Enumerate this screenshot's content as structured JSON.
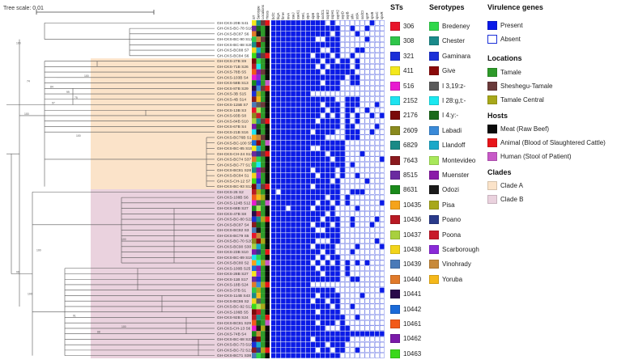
{
  "tree_scale": {
    "label": "Tree scale: 0.01"
  },
  "genes": [
    "ST",
    "Serotype",
    "Locations",
    "Hosts",
    "Clades",
    "bcfC",
    "bigA",
    "fimH",
    "invA",
    "sseJ",
    "sseK1",
    "sseL",
    "sipA",
    "sipB",
    "sipD",
    "sodC1",
    "sopE2",
    "sspH1",
    "sspH2",
    "sopD",
    "sopB",
    "sifA",
    "stdA",
    "sodCI",
    "sptP",
    "spvB",
    "spvC",
    "spvR"
  ],
  "gene_headers": [
    "ST",
    "Serotype",
    "Locations",
    "Hosts",
    "Clades",
    "bcfC",
    "bigA",
    "fimH",
    "invA",
    "sseJ",
    "sseK1",
    "sseL",
    "sipA",
    "sipB",
    "sipD",
    "sodC1",
    "sopE2",
    "sspH1",
    "sspH2",
    "sopD",
    "sopB",
    "sifA",
    "stdA",
    "sodCI",
    "sptP",
    "spvB",
    "spvC",
    "spvR"
  ],
  "taxa": [
    "GH-CKS-20B S41",
    "GH-CKS-BC-78 S18",
    "GH-CKS-BC87 S6",
    "GH-CKS-BC-90 S11",
    "GH-CKS-BC-88 S20",
    "GH-CKS-BC88 S7",
    "GH-CKS-BC84 S6",
    "GH-CKS-27B S9",
    "GH-CKS-71B S26",
    "GH-CKS-78B S5",
    "GH-CKS-103B S4",
    "GH-CKS-58B S13",
    "GH-CKS-87B S29",
    "GH-CKS-3B S15",
    "GH-CKS-4B S14",
    "GH-CKS-115B S7",
    "GH-CKS-13B S3",
    "GH-CKS-93B S8",
    "GH-CKS-84B S10",
    "GH-CKS-67B S4",
    "GH-CKS-21B S16",
    "GH-CKS-BC76B S12",
    "GH-CKS-BC-100 S5",
    "GH-CKS-BC-85 S15",
    "GH-CKS-CH-24 S13",
    "GH-CKS-BC74 S37",
    "GH-CKS-BC-77 S17",
    "GH-CKS-BC81 S28",
    "GH-CKS-BC84 S1",
    "GH-CKS-CH-12 S7",
    "GH-CKS-BC-93 S12",
    "GH-CKS-26 S2",
    "GH-CKS-108B S6",
    "GH-CKS-124B S12",
    "GH-CKS-68B S27",
    "GH-CKS-47B S8",
    "GH-CKS-BC-80 S22",
    "GH-CKS-BC87 S4",
    "GH-CKS-BC82 S3",
    "GH-CKS-BC79 S5",
    "GH-CKS-BC-70 S20",
    "GH-CKS-BC90 S30",
    "GH-CKS-23B S10",
    "GH-CKS-BC-89 S19",
    "GH-CKS-BC80 S2",
    "GH-CKS-100B S25",
    "GH-CKS-28B S27",
    "GH-CKS-11B S17",
    "GH-CKS-18B S24",
    "GH-CKS-37B S1",
    "GH-CKS-114B S43",
    "GH-CKS-BC86 S2",
    "GH-CKS-BC-92 S11",
    "GH-CKS-106B S5",
    "GH-CKS-92B S24",
    "GH-CKS-BC81 S29",
    "GH-CKS-CH-13 S6",
    "GH-CKS-74B S4",
    "GH-CKS-BC-68 S23",
    "GH-CKS-BC-73 S16",
    "GH-CKS-BC-72 S21",
    "GH-CKS-BC71 S38"
  ],
  "legends": {
    "sts": {
      "title": "STs",
      "items": [
        {
          "label": "306",
          "color": "#e8152a"
        },
        {
          "label": "308",
          "color": "#2fc64a"
        },
        {
          "label": "321",
          "color": "#1a2fd8"
        },
        {
          "label": "411",
          "color": "#f4e81b"
        },
        {
          "label": "516",
          "color": "#e81bd0"
        },
        {
          "label": "2152",
          "color": "#1ee3f0"
        },
        {
          "label": "2176",
          "color": "#7a0a0a"
        },
        {
          "label": "2609",
          "color": "#8a8a1e"
        },
        {
          "label": "6829",
          "color": "#1a8a86"
        },
        {
          "label": "7643",
          "color": "#8a1a1e"
        },
        {
          "label": "8515",
          "color": "#6a2aa0"
        },
        {
          "label": "8631",
          "color": "#1a8a1a"
        },
        {
          "label": "10435",
          "color": "#f5a31b"
        },
        {
          "label": "10436",
          "color": "#b81a24"
        },
        {
          "label": "10437",
          "color": "#a8d03e"
        },
        {
          "label": "10438",
          "color": "#f2d41a"
        },
        {
          "label": "10439",
          "color": "#4a7ab8"
        },
        {
          "label": "10440",
          "color": "#e07a2a"
        },
        {
          "label": "10441",
          "color": "#2a0a4a"
        },
        {
          "label": "10442",
          "color": "#1a6ad8"
        },
        {
          "label": "10461",
          "color": "#f25a1a"
        },
        {
          "label": "10462",
          "color": "#7a1aa8"
        },
        {
          "label": "10463",
          "color": "#3ad81a"
        }
      ]
    },
    "serotypes": {
      "title": "Serotypes",
      "items": [
        {
          "label": "Bredeney",
          "color": "#2fd84a"
        },
        {
          "label": "Chester",
          "color": "#1a8a8a"
        },
        {
          "label": "Gaminara",
          "color": "#1a2fd8"
        },
        {
          "label": "Give",
          "color": "#8a0a0a"
        },
        {
          "label": "I 3,19:z-",
          "color": "#5a5a5a"
        },
        {
          "label": "I 28:g,t:-",
          "color": "#1ae8f0"
        },
        {
          "label": "I 4:y:-",
          "color": "#1a6a1a"
        },
        {
          "label": "Labadi",
          "color": "#3a8ad8"
        },
        {
          "label": "Llandoff",
          "color": "#1aa8c8"
        },
        {
          "label": "Montevideo",
          "color": "#a8e85a"
        },
        {
          "label": "Muenster",
          "color": "#8a1aa8"
        },
        {
          "label": "Odozi",
          "color": "#1a1a1a"
        },
        {
          "label": "Pisa",
          "color": "#a8a81a"
        },
        {
          "label": "Poano",
          "color": "#2a3a8a"
        },
        {
          "label": "Poona",
          "color": "#c81a2a"
        },
        {
          "label": "Scarborough",
          "color": "#8a2ad8"
        },
        {
          "label": "Vinohrady",
          "color": "#c88a3a"
        },
        {
          "label": "Yoruba",
          "color": "#f5b81a"
        }
      ]
    },
    "virulence": {
      "title": "Virulence genes",
      "items": [
        {
          "label": "Present",
          "color": "#0a1ae8"
        },
        {
          "label": "Absent",
          "color": "#ffffff"
        }
      ]
    },
    "locations": {
      "title": "Locations",
      "items": [
        {
          "label": "Tamale",
          "color": "#2e9a2a"
        },
        {
          "label": "Sheshegu-Tamale",
          "color": "#6a3a3a"
        },
        {
          "label": "Tamale Central",
          "color": "#a8a81a"
        }
      ]
    },
    "hosts": {
      "title": "Hosts",
      "items": [
        {
          "label": "Meat (Raw Beef)",
          "color": "#0a0a0a"
        },
        {
          "label": "Animal (Blood of Slaughtered Cattle)",
          "color": "#e8151a"
        },
        {
          "label": "Human (Stool of Patient)",
          "color": "#c85ac8"
        }
      ]
    },
    "clades": {
      "title": "Clades",
      "items": [
        {
          "label": "Clade A",
          "color": "#fbe3c9"
        },
        {
          "label": "Clade B",
          "color": "#ead2de"
        }
      ]
    }
  }
}
